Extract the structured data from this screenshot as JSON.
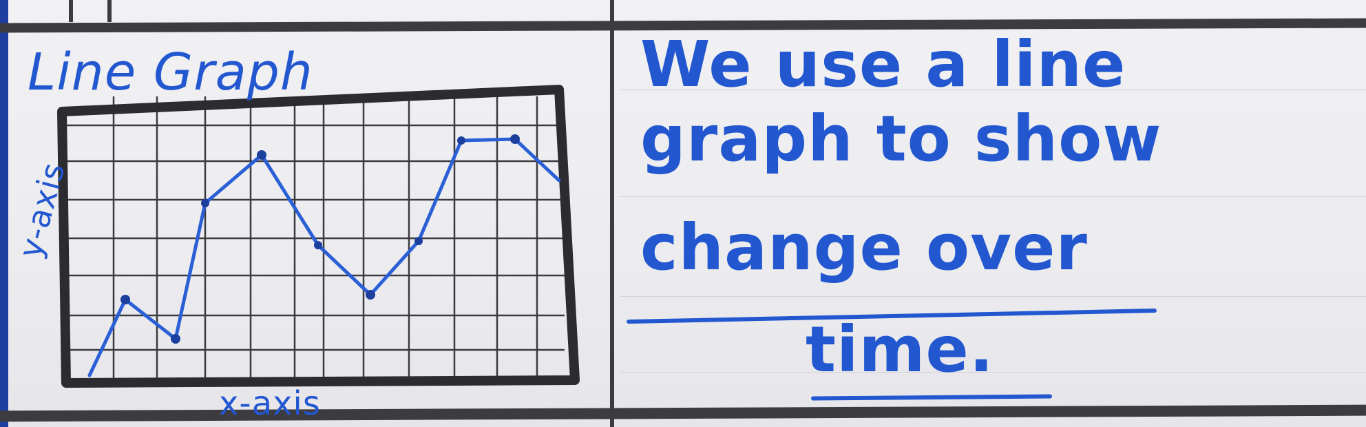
{
  "colors": {
    "ink_blue": "#2257d0",
    "marker_black": "#2b2b30",
    "paper": "#f0f0f2"
  },
  "left_panel": {
    "title": "Line Graph",
    "y_axis_label": "y-axis",
    "x_axis_label": "x-axis"
  },
  "right_panel": {
    "line1": "We use a line",
    "line2": "graph to show",
    "line3": "change over",
    "line4": "time."
  }
}
